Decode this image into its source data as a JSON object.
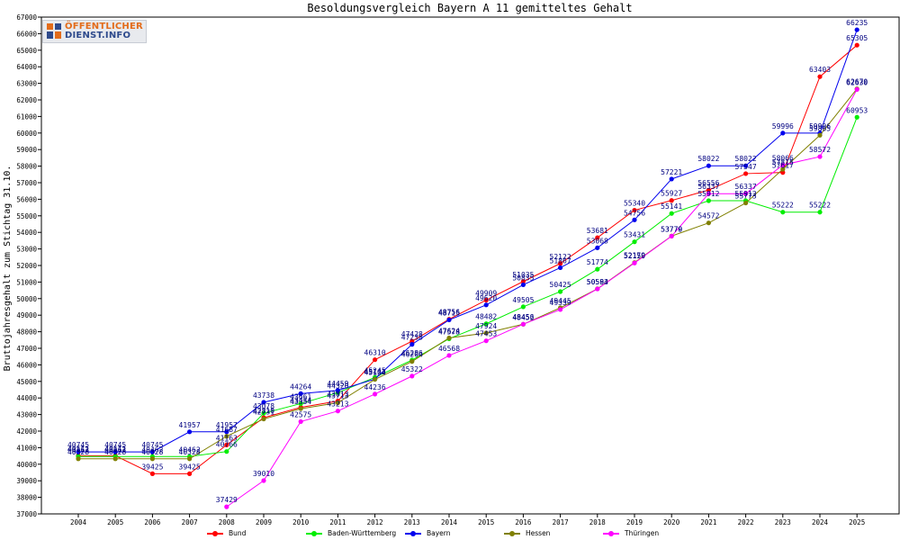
{
  "logo": {
    "line1": "ÖFFENTLICHER",
    "line2": "DIENST.INFO"
  },
  "chart_data": {
    "type": "line",
    "title": "Besoldungsvergleich Bayern A 11 gemitteltes Gehalt",
    "xlabel": "",
    "ylabel": "Bruttojahresgehalt zum Stichtag 31.10.",
    "x": [
      2004,
      2005,
      2006,
      2007,
      2008,
      2009,
      2010,
      2011,
      2012,
      2013,
      2014,
      2015,
      2016,
      2017,
      2018,
      2019,
      2020,
      2021,
      2022,
      2023,
      2024,
      2025
    ],
    "ylim": [
      37000,
      67000
    ],
    "ytick_step": 1000,
    "grid": false,
    "legend_position": "bottom",
    "series": [
      {
        "name": "Bund",
        "color": "#ff0000",
        "values": [
          40511,
          40511,
          39425,
          39425,
          41163,
          42810,
          43434,
          43813,
          46310,
          47428,
          48756,
          49909,
          51035,
          52122,
          53681,
          55340,
          55927,
          56556,
          57547,
          57617,
          63403,
          65305
        ]
      },
      {
        "name": "Baden-Württemberg",
        "color": "#00ee00",
        "values": [
          40462,
          40462,
          40462,
          40462,
          40766,
          43078,
          43661,
          44320,
          45245,
          46286,
          47578,
          48482,
          49505,
          50425,
          51774,
          53431,
          55141,
          55912,
          55912,
          55222,
          55222,
          60953
        ]
      },
      {
        "name": "Bayern",
        "color": "#0000ee",
        "values": [
          40745,
          40745,
          40745,
          41957,
          41957,
          43738,
          44264,
          44459,
          45143,
          47238,
          48715,
          49620,
          50835,
          51867,
          53068,
          54756,
          57221,
          58022,
          58022,
          59996,
          59996,
          66235
        ]
      },
      {
        "name": "Hessen",
        "color": "#808000",
        "values": [
          40328,
          40328,
          40328,
          40328,
          41687,
          42731,
          43354,
          43713,
          45124,
          46204,
          47624,
          47924,
          48452,
          49445,
          50593,
          52179,
          53779,
          54572,
          55773,
          57815,
          59865,
          62670
        ]
      },
      {
        "name": "Thüringen",
        "color": "#ff00ff",
        "values": [
          null,
          null,
          null,
          null,
          37429,
          39010,
          42575,
          43213,
          44236,
          45322,
          46568,
          47453,
          48456,
          49339,
          50584,
          52150,
          53770,
          56337,
          56337,
          58066,
          58572,
          62630
        ]
      }
    ]
  }
}
